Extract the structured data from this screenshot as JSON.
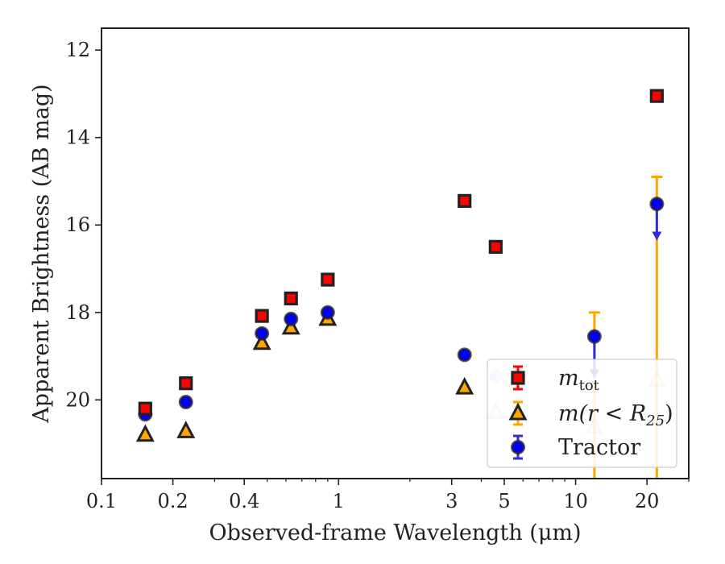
{
  "chart_data": {
    "type": "scatter",
    "xlabel": "Observed-frame Wavelength (μm)",
    "ylabel": "Apparent Brightness (AB mag)",
    "xscale": "log",
    "xlim": [
      0.1,
      30
    ],
    "ylim": [
      21.8,
      11.5
    ],
    "y_inverted": true,
    "x_ticks": [
      0.1,
      0.2,
      0.4,
      1,
      3,
      5,
      10,
      20
    ],
    "x_tick_labels": [
      "0.1",
      "0.2",
      "0.4",
      "1",
      "3",
      "5",
      "10",
      "20"
    ],
    "y_ticks": [
      12,
      14,
      16,
      18,
      20
    ],
    "y_tick_labels": [
      "12",
      "14",
      "16",
      "18",
      "20"
    ],
    "grid": false,
    "legend_position": "lower-right",
    "series": [
      {
        "name": "m_tot",
        "legend_label": "m",
        "legend_sub": "tot",
        "marker": "square",
        "color": "#ff0000",
        "points": [
          {
            "x": 0.153,
            "y": 20.2
          },
          {
            "x": 0.227,
            "y": 19.62
          },
          {
            "x": 0.475,
            "y": 18.08
          },
          {
            "x": 0.63,
            "y": 17.68
          },
          {
            "x": 0.9,
            "y": 17.25
          },
          {
            "x": 3.4,
            "y": 15.45
          },
          {
            "x": 4.6,
            "y": 16.5
          },
          {
            "x": 22.0,
            "y": 13.05
          }
        ]
      },
      {
        "name": "m(r < R25)",
        "legend_label": "m(r < R",
        "legend_sub": "25",
        "legend_close": ")",
        "marker": "triangle",
        "color": "#ffa500",
        "points": [
          {
            "x": 0.153,
            "y": 20.8
          },
          {
            "x": 0.227,
            "y": 20.72
          },
          {
            "x": 0.475,
            "y": 18.7
          },
          {
            "x": 0.63,
            "y": 18.35
          },
          {
            "x": 0.9,
            "y": 18.15
          },
          {
            "x": 3.4,
            "y": 19.72
          },
          {
            "x": 4.6,
            "y": 20.28,
            "faded": true
          },
          {
            "x": 12.0,
            "y": 20.62,
            "faded": true,
            "err_low": 18.0,
            "err_high": 21.8
          },
          {
            "x": 22.0,
            "y": 19.55,
            "faded": true,
            "err_low": 14.9,
            "err_high": 21.8
          }
        ]
      },
      {
        "name": "Tractor",
        "legend_label": "Tractor",
        "marker": "circle",
        "color": "#0000ff",
        "points": [
          {
            "x": 0.153,
            "y": 20.33
          },
          {
            "x": 0.227,
            "y": 20.05
          },
          {
            "x": 0.475,
            "y": 18.48
          },
          {
            "x": 0.63,
            "y": 18.15
          },
          {
            "x": 0.9,
            "y": 18.0
          },
          {
            "x": 3.4,
            "y": 18.97
          },
          {
            "x": 4.6,
            "y": 19.45,
            "faded": true
          },
          {
            "x": 12.0,
            "y": 18.55,
            "upper_limit_to": 19.45
          },
          {
            "x": 22.0,
            "y": 15.52,
            "upper_limit_to": 16.3
          }
        ]
      }
    ]
  }
}
